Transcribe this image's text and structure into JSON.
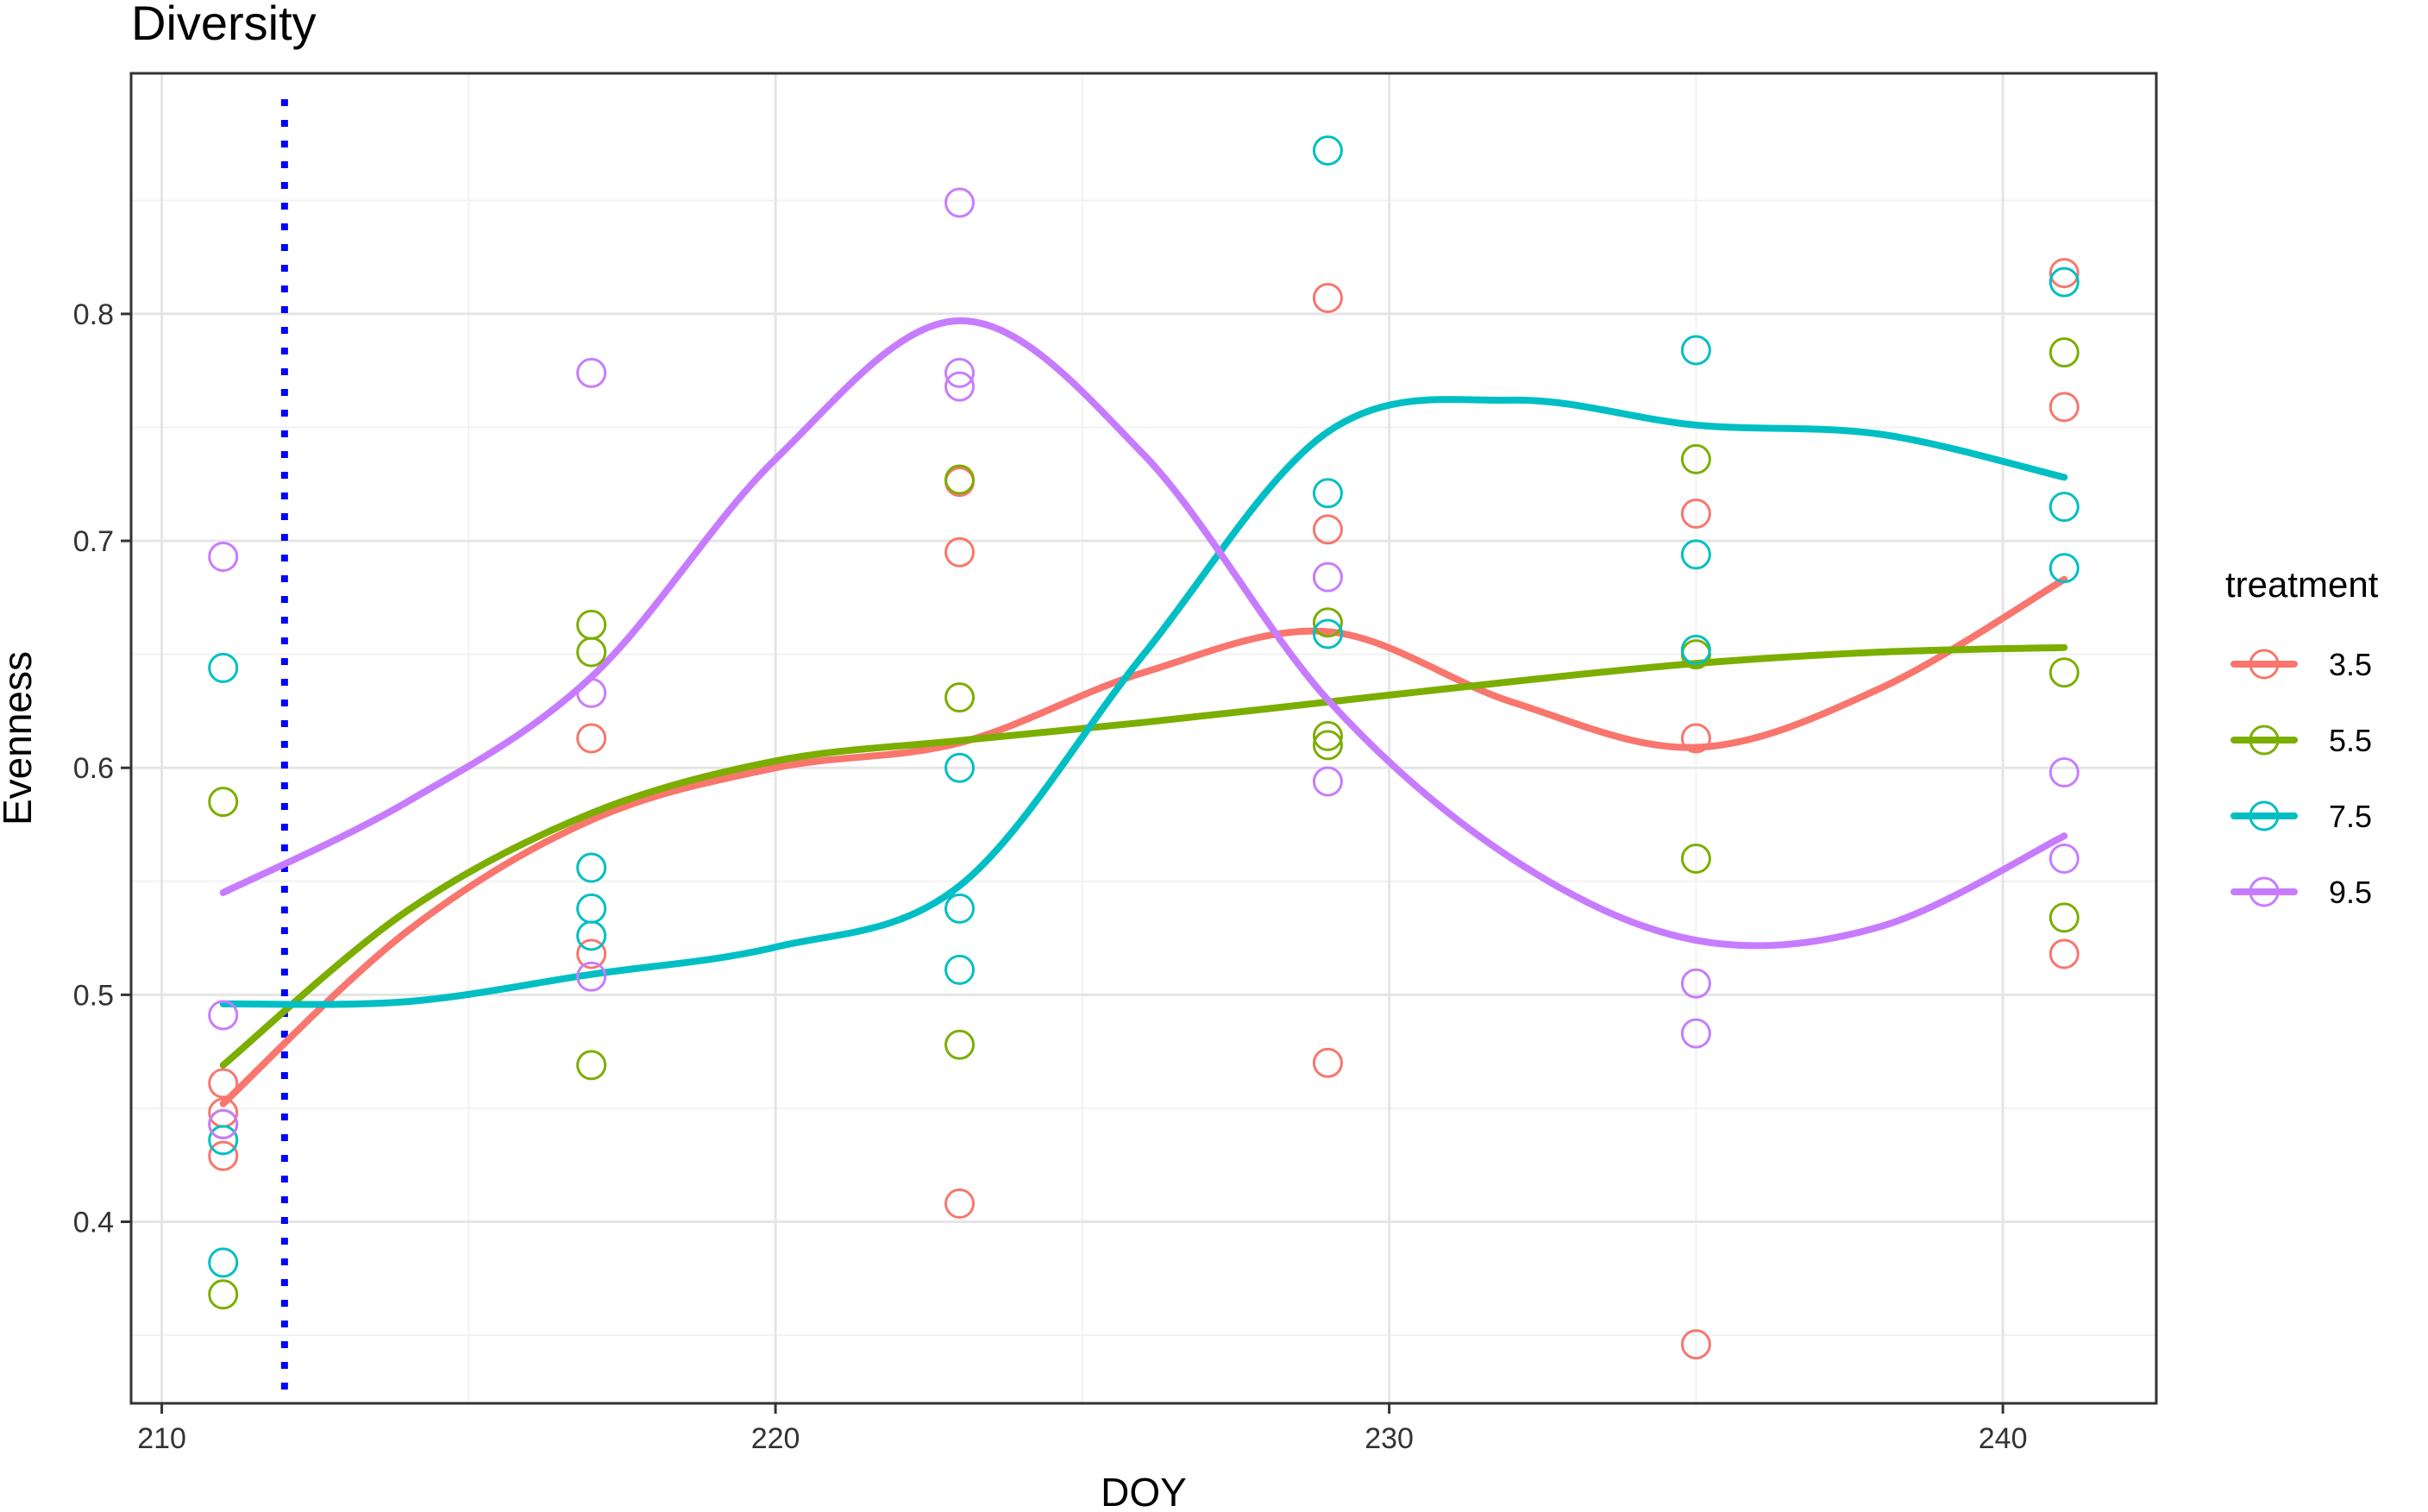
{
  "chart_data": {
    "type": "scatter",
    "title": "Diversity",
    "xlabel": "DOY",
    "ylabel": "Evenness",
    "xlim": [
      209.5,
      242.5
    ],
    "ylim": [
      0.32,
      0.906
    ],
    "x_ticks": [
      210,
      220,
      230,
      240
    ],
    "x_tick_labels": [
      "210",
      "220",
      "230",
      "240"
    ],
    "y_ticks": [
      0.4,
      0.5,
      0.6,
      0.7,
      0.8
    ],
    "y_tick_labels": [
      "0.4",
      "0.5",
      "0.6",
      "0.7",
      "0.8"
    ],
    "grid": true,
    "legend_title": "treatment",
    "legend_position": "right",
    "reference_line": {
      "x": 212,
      "style": "dotted",
      "color": "#0000ff"
    },
    "series": [
      {
        "name": "3.5",
        "color": "#f8766d",
        "points": [
          [
            211,
            0.461
          ],
          [
            211,
            0.448
          ],
          [
            211,
            0.429
          ],
          [
            217,
            0.613
          ],
          [
            217,
            0.518
          ],
          [
            223,
            0.726
          ],
          [
            223,
            0.695
          ],
          [
            223,
            0.408
          ],
          [
            229,
            0.807
          ],
          [
            229,
            0.705
          ],
          [
            229,
            0.47
          ],
          [
            235,
            0.712
          ],
          [
            235,
            0.613
          ],
          [
            235,
            0.346
          ],
          [
            241,
            0.818
          ],
          [
            241,
            0.759
          ],
          [
            241,
            0.518
          ]
        ],
        "smooth": [
          [
            211,
            0.452
          ],
          [
            214,
            0.528
          ],
          [
            217,
            0.577
          ],
          [
            220,
            0.6
          ],
          [
            223,
            0.611
          ],
          [
            226,
            0.642
          ],
          [
            229,
            0.66
          ],
          [
            232,
            0.629
          ],
          [
            235,
            0.609
          ],
          [
            238,
            0.635
          ],
          [
            241,
            0.683
          ]
        ]
      },
      {
        "name": "5.5",
        "color": "#7cae00",
        "points": [
          [
            211,
            0.585
          ],
          [
            211,
            0.443
          ],
          [
            211,
            0.368
          ],
          [
            217,
            0.663
          ],
          [
            217,
            0.651
          ],
          [
            217,
            0.469
          ],
          [
            223,
            0.727
          ],
          [
            223,
            0.631
          ],
          [
            223,
            0.478
          ],
          [
            229,
            0.664
          ],
          [
            229,
            0.614
          ],
          [
            229,
            0.61
          ],
          [
            235,
            0.736
          ],
          [
            235,
            0.65
          ],
          [
            235,
            0.56
          ],
          [
            241,
            0.783
          ],
          [
            241,
            0.642
          ],
          [
            241,
            0.534
          ]
        ],
        "smooth": [
          [
            211,
            0.469
          ],
          [
            214,
            0.537
          ],
          [
            217,
            0.58
          ],
          [
            220,
            0.603
          ],
          [
            223,
            0.612
          ],
          [
            226,
            0.62
          ],
          [
            229,
            0.629
          ],
          [
            232,
            0.638
          ],
          [
            235,
            0.646
          ],
          [
            238,
            0.651
          ],
          [
            241,
            0.653
          ]
        ]
      },
      {
        "name": "7.5",
        "color": "#00bfc4",
        "points": [
          [
            211,
            0.644
          ],
          [
            211,
            0.436
          ],
          [
            211,
            0.382
          ],
          [
            217,
            0.556
          ],
          [
            217,
            0.538
          ],
          [
            217,
            0.526
          ],
          [
            223,
            0.6
          ],
          [
            223,
            0.538
          ],
          [
            223,
            0.511
          ],
          [
            229,
            0.872
          ],
          [
            229,
            0.721
          ],
          [
            229,
            0.659
          ],
          [
            235,
            0.784
          ],
          [
            235,
            0.694
          ],
          [
            235,
            0.652
          ],
          [
            241,
            0.814
          ],
          [
            241,
            0.715
          ],
          [
            241,
            0.688
          ]
        ],
        "smooth": [
          [
            211,
            0.496
          ],
          [
            214,
            0.497
          ],
          [
            217,
            0.509
          ],
          [
            220,
            0.521
          ],
          [
            223,
            0.548
          ],
          [
            226,
            0.65
          ],
          [
            229,
            0.748
          ],
          [
            232,
            0.762
          ],
          [
            235,
            0.751
          ],
          [
            238,
            0.747
          ],
          [
            241,
            0.728
          ]
        ]
      },
      {
        "name": "9.5",
        "color": "#c77cff",
        "points": [
          [
            211,
            0.693
          ],
          [
            211,
            0.491
          ],
          [
            211,
            0.443
          ],
          [
            217,
            0.774
          ],
          [
            217,
            0.633
          ],
          [
            217,
            0.508
          ],
          [
            223,
            0.849
          ],
          [
            223,
            0.774
          ],
          [
            223,
            0.768
          ],
          [
            229,
            0.684
          ],
          [
            229,
            0.594
          ],
          [
            235,
            0.505
          ],
          [
            235,
            0.483
          ],
          [
            241,
            0.598
          ],
          [
            241,
            0.56
          ]
        ],
        "smooth": [
          [
            211,
            0.545
          ],
          [
            214,
            0.585
          ],
          [
            217,
            0.64
          ],
          [
            220,
            0.736
          ],
          [
            223,
            0.797
          ],
          [
            226,
            0.738
          ],
          [
            229,
            0.63
          ],
          [
            232,
            0.56
          ],
          [
            235,
            0.524
          ],
          [
            238,
            0.53
          ],
          [
            241,
            0.57
          ]
        ]
      }
    ]
  }
}
